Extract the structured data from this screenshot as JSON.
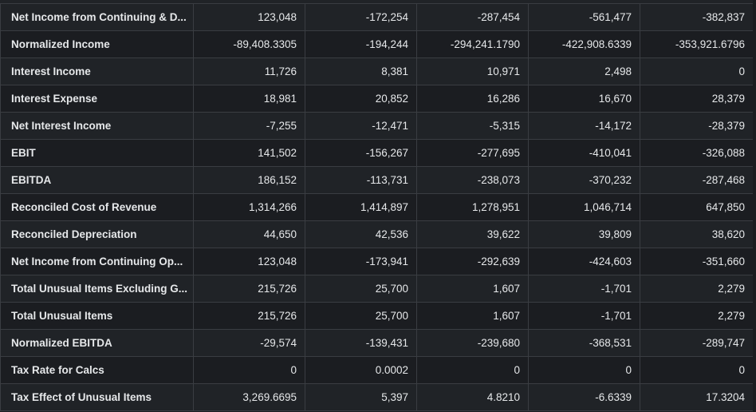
{
  "table": {
    "rows": [
      {
        "label": "Net Income from Continuing & D...",
        "values": [
          "123,048",
          "-172,254",
          "-287,454",
          "-561,477",
          "-382,837"
        ]
      },
      {
        "label": "Normalized Income",
        "values": [
          "-89,408.3305",
          "-194,244",
          "-294,241.1790",
          "-422,908.6339",
          "-353,921.6796"
        ]
      },
      {
        "label": "Interest Income",
        "values": [
          "11,726",
          "8,381",
          "10,971",
          "2,498",
          "0"
        ]
      },
      {
        "label": "Interest Expense",
        "values": [
          "18,981",
          "20,852",
          "16,286",
          "16,670",
          "28,379"
        ]
      },
      {
        "label": "Net Interest Income",
        "values": [
          "-7,255",
          "-12,471",
          "-5,315",
          "-14,172",
          "-28,379"
        ]
      },
      {
        "label": "EBIT",
        "values": [
          "141,502",
          "-156,267",
          "-277,695",
          "-410,041",
          "-326,088"
        ]
      },
      {
        "label": "EBITDA",
        "values": [
          "186,152",
          "-113,731",
          "-238,073",
          "-370,232",
          "-287,468"
        ]
      },
      {
        "label": "Reconciled Cost of Revenue",
        "values": [
          "1,314,266",
          "1,414,897",
          "1,278,951",
          "1,046,714",
          "647,850"
        ]
      },
      {
        "label": "Reconciled Depreciation",
        "values": [
          "44,650",
          "42,536",
          "39,622",
          "39,809",
          "38,620"
        ]
      },
      {
        "label": "Net Income from Continuing Op...",
        "values": [
          "123,048",
          "-173,941",
          "-292,639",
          "-424,603",
          "-351,660"
        ]
      },
      {
        "label": "Total Unusual Items Excluding G...",
        "values": [
          "215,726",
          "25,700",
          "1,607",
          "-1,701",
          "2,279"
        ]
      },
      {
        "label": "Total Unusual Items",
        "values": [
          "215,726",
          "25,700",
          "1,607",
          "-1,701",
          "2,279"
        ]
      },
      {
        "label": "Normalized EBITDA",
        "values": [
          "-29,574",
          "-139,431",
          "-239,680",
          "-368,531",
          "-289,747"
        ]
      },
      {
        "label": "Tax Rate for Calcs",
        "values": [
          "0",
          "0.0002",
          "0",
          "0",
          "0"
        ]
      },
      {
        "label": "Tax Effect of Unusual Items",
        "values": [
          "3,269.6695",
          "5,397",
          "4.8210",
          "-6.6339",
          "17.3204"
        ]
      }
    ]
  }
}
